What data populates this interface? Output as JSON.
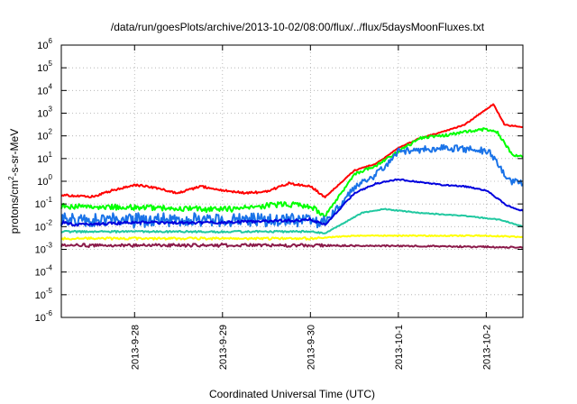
{
  "chart_data": {
    "type": "line",
    "title": "/data/run/goesPlots/archive/2013-10-02/08:00/flux/../flux/5daysMoonFluxes.txt",
    "xlabel": "Coordinated Universal Time (UTC)",
    "ylabel_parts": {
      "pre": "protons/cm",
      "sup": "2",
      "post": "-s-sr-MeV"
    },
    "x_range": [
      "2013-09-27T04:00",
      "2013-10-02T10:00"
    ],
    "x_ticks": [
      "2013-9-28",
      "2013-9-29",
      "2013-9-30",
      "2013-10-1",
      "2013-10-2"
    ],
    "y_scale": "log",
    "y_range": [
      1e-06,
      1000000.0
    ],
    "y_ticks": [
      {
        "base": "10",
        "exp": "-6"
      },
      {
        "base": "10",
        "exp": "-5"
      },
      {
        "base": "10",
        "exp": "-4"
      },
      {
        "base": "10",
        "exp": "-3"
      },
      {
        "base": "10",
        "exp": "-2"
      },
      {
        "base": "10",
        "exp": "-1"
      },
      {
        "base": "10",
        "exp": "0"
      },
      {
        "base": "10",
        "exp": "1"
      },
      {
        "base": "10",
        "exp": "2"
      },
      {
        "base": "10",
        "exp": "3"
      },
      {
        "base": "10",
        "exp": "4"
      },
      {
        "base": "10",
        "exp": "5"
      },
      {
        "base": "10",
        "exp": "6"
      }
    ],
    "grid": true,
    "series": [
      {
        "color": "#ff0000",
        "noise": 0.05,
        "points": [
          [
            "2013-09-27T04:00",
            0.25
          ],
          [
            "2013-09-27T12:00",
            0.2
          ],
          [
            "2013-09-27T18:00",
            0.4
          ],
          [
            "2013-09-28T00:00",
            0.7
          ],
          [
            "2013-09-28T06:00",
            0.5
          ],
          [
            "2013-09-28T12:00",
            0.3
          ],
          [
            "2013-09-28T18:00",
            0.6
          ],
          [
            "2013-09-29T00:00",
            0.4
          ],
          [
            "2013-09-29T06:00",
            0.3
          ],
          [
            "2013-09-29T12:00",
            0.35
          ],
          [
            "2013-09-29T18:00",
            0.8
          ],
          [
            "2013-09-30T00:00",
            0.6
          ],
          [
            "2013-09-30T04:00",
            0.2
          ],
          [
            "2013-09-30T12:00",
            3
          ],
          [
            "2013-09-30T18:00",
            6
          ],
          [
            "2013-10-01T00:00",
            30
          ],
          [
            "2013-10-01T06:00",
            80
          ],
          [
            "2013-10-01T12:00",
            150
          ],
          [
            "2013-10-01T18:00",
            300
          ],
          [
            "2013-10-02T00:00",
            1500
          ],
          [
            "2013-10-02T02:00",
            2500
          ],
          [
            "2013-10-02T05:00",
            300
          ],
          [
            "2013-10-02T10:00",
            250
          ]
        ]
      },
      {
        "color": "#00ff00",
        "noise": 0.12,
        "points": [
          [
            "2013-09-27T04:00",
            0.08
          ],
          [
            "2013-09-28T00:00",
            0.07
          ],
          [
            "2013-09-29T00:00",
            0.06
          ],
          [
            "2013-09-29T18:00",
            0.1
          ],
          [
            "2013-09-30T00:00",
            0.08
          ],
          [
            "2013-09-30T04:00",
            0.03
          ],
          [
            "2013-09-30T12:00",
            2
          ],
          [
            "2013-09-30T18:00",
            5
          ],
          [
            "2013-10-01T00:00",
            20
          ],
          [
            "2013-10-01T06:00",
            80
          ],
          [
            "2013-10-01T12:00",
            100
          ],
          [
            "2013-10-01T18:00",
            150
          ],
          [
            "2013-10-02T00:00",
            200
          ],
          [
            "2013-10-02T03:00",
            150
          ],
          [
            "2013-10-02T07:00",
            15
          ],
          [
            "2013-10-02T10:00",
            12
          ]
        ]
      },
      {
        "color": "#1a73e8",
        "noise": 0.3,
        "points": [
          [
            "2013-09-27T04:00",
            0.02
          ],
          [
            "2013-09-28T00:00",
            0.02
          ],
          [
            "2013-09-29T00:00",
            0.02
          ],
          [
            "2013-09-30T00:00",
            0.02
          ],
          [
            "2013-09-30T04:00",
            0.015
          ],
          [
            "2013-09-30T12:00",
            0.5
          ],
          [
            "2013-09-30T18:00",
            2
          ],
          [
            "2013-10-01T00:00",
            20
          ],
          [
            "2013-10-01T12:00",
            30
          ],
          [
            "2013-10-01T20:00",
            25
          ],
          [
            "2013-10-02T01:00",
            20
          ],
          [
            "2013-10-02T06:00",
            1
          ],
          [
            "2013-10-02T10:00",
            0.8
          ]
        ]
      },
      {
        "color": "#0000dd",
        "noise": 0.06,
        "points": [
          [
            "2013-09-27T04:00",
            0.015
          ],
          [
            "2013-09-27T08:00",
            0.012
          ],
          [
            "2013-09-28T00:00",
            0.015
          ],
          [
            "2013-09-29T00:00",
            0.015
          ],
          [
            "2013-09-30T00:00",
            0.02
          ],
          [
            "2013-09-30T04:00",
            0.012
          ],
          [
            "2013-09-30T12:00",
            0.3
          ],
          [
            "2013-09-30T18:00",
            0.8
          ],
          [
            "2013-10-01T00:00",
            1.2
          ],
          [
            "2013-10-01T12:00",
            0.7
          ],
          [
            "2013-10-01T18:00",
            0.6
          ],
          [
            "2013-10-02T00:00",
            0.4
          ],
          [
            "2013-10-02T06:00",
            0.08
          ],
          [
            "2013-10-02T10:00",
            0.05
          ]
        ]
      },
      {
        "color": "#20c8a0",
        "noise": 0.04,
        "points": [
          [
            "2013-09-27T04:00",
            0.006
          ],
          [
            "2013-09-28T00:00",
            0.006
          ],
          [
            "2013-09-29T00:00",
            0.006
          ],
          [
            "2013-09-30T00:00",
            0.006
          ],
          [
            "2013-09-30T04:00",
            0.005
          ],
          [
            "2013-09-30T14:00",
            0.04
          ],
          [
            "2013-09-30T20:00",
            0.06
          ],
          [
            "2013-10-01T06:00",
            0.04
          ],
          [
            "2013-10-01T18:00",
            0.03
          ],
          [
            "2013-10-02T04:00",
            0.02
          ],
          [
            "2013-10-02T10:00",
            0.01
          ]
        ]
      },
      {
        "color": "#ffff00",
        "noise": 0.05,
        "points": [
          [
            "2013-09-27T04:00",
            0.003
          ],
          [
            "2013-09-28T00:00",
            0.003
          ],
          [
            "2013-09-29T00:00",
            0.003
          ],
          [
            "2013-09-30T00:00",
            0.003
          ],
          [
            "2013-09-30T12:00",
            0.004
          ],
          [
            "2013-10-01T00:00",
            0.004
          ],
          [
            "2013-10-02T00:00",
            0.004
          ],
          [
            "2013-10-02T10:00",
            0.0035
          ]
        ]
      },
      {
        "color": "#8b1a4a",
        "noise": 0.07,
        "points": [
          [
            "2013-09-27T04:00",
            0.0015
          ],
          [
            "2013-09-28T00:00",
            0.0015
          ],
          [
            "2013-09-29T00:00",
            0.0015
          ],
          [
            "2013-09-30T00:00",
            0.0015
          ],
          [
            "2013-10-01T00:00",
            0.0014
          ],
          [
            "2013-10-02T00:00",
            0.0013
          ],
          [
            "2013-10-02T10:00",
            0.0012
          ]
        ]
      }
    ]
  }
}
